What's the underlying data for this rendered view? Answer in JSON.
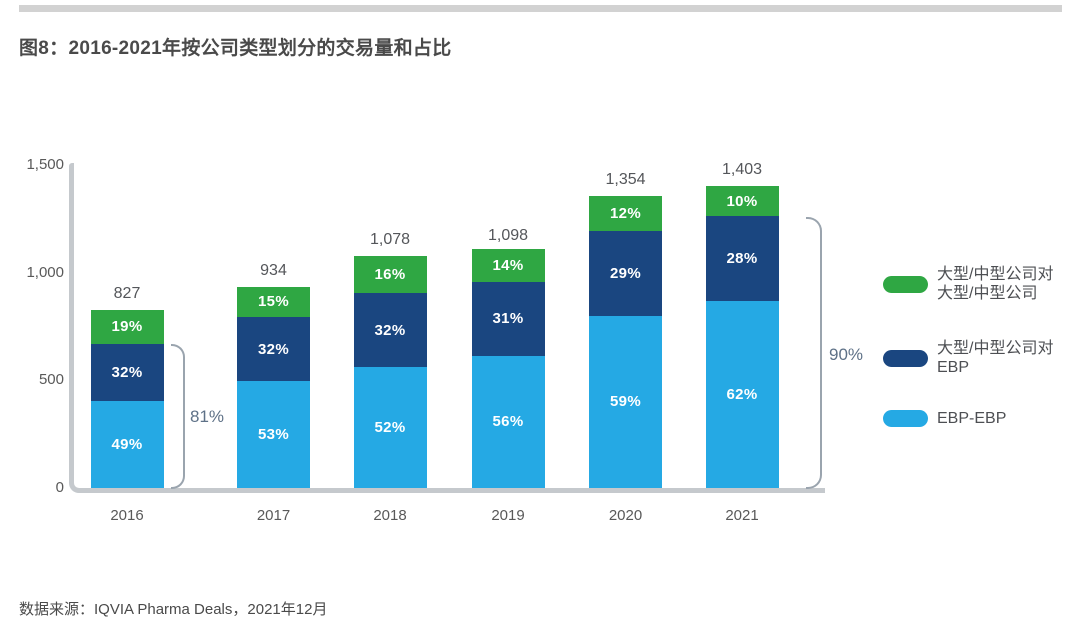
{
  "page": {
    "title": "图8：2016-2021年按公司类型划分的交易量和占比",
    "source": "数据来源：IQVIA Pharma Deals，2021年12月"
  },
  "chart_data": {
    "type": "bar",
    "stacked": true,
    "title": "图8：2016-2021年按公司类型划分的交易量和占比",
    "categories": [
      "2016",
      "2017",
      "2018",
      "2019",
      "2020",
      "2021"
    ],
    "totals": [
      827,
      934,
      1078,
      1098,
      1354,
      1403
    ],
    "total_labels": [
      "827",
      "934",
      "1,078",
      "1,098",
      "1,354",
      "1,403"
    ],
    "series": [
      {
        "id": "ebp-ebp",
        "name": "EBP-EBP",
        "color": "#25a9e4",
        "percents": [
          49,
          53,
          52,
          56,
          59,
          62
        ]
      },
      {
        "id": "large-mid-to-ebp",
        "name": "大型/中型公司对EBP",
        "color": "#1a4680",
        "percents": [
          32,
          32,
          32,
          31,
          29,
          28
        ]
      },
      {
        "id": "large-mid-to-large-mid",
        "name": "大型/中型公司对大型/中型公司",
        "color": "#2fa743",
        "percents": [
          19,
          15,
          16,
          14,
          12,
          10
        ]
      }
    ],
    "xlabel": "",
    "ylabel": "",
    "ylim": [
      0,
      1500
    ],
    "grid": false,
    "legend_position": "right",
    "yticks": [
      {
        "label": "0",
        "value": 0
      },
      {
        "label": "500",
        "value": 500
      },
      {
        "label": "1,000",
        "value": 1000
      },
      {
        "label": "1,500",
        "value": 1500
      }
    ],
    "annotations": [
      {
        "label": "81%",
        "year": "2016",
        "covers": "EBP-EBP + 大型/中型公司对EBP"
      },
      {
        "label": "90%",
        "year": "2021",
        "covers": "EBP-EBP + 大型/中型公司对EBP"
      }
    ]
  },
  "legend": {
    "items": [
      {
        "id": "large-mid-to-large-mid",
        "color": "#2fa743",
        "lines": [
          "大型/中型公司对",
          "大型/中型公司"
        ]
      },
      {
        "id": "large-mid-to-ebp",
        "color": "#1a4680",
        "lines": [
          "大型/中型公司对",
          "EBP"
        ]
      },
      {
        "id": "ebp-ebp",
        "color": "#25a9e4",
        "lines": [
          "EBP-EBP"
        ]
      }
    ]
  }
}
